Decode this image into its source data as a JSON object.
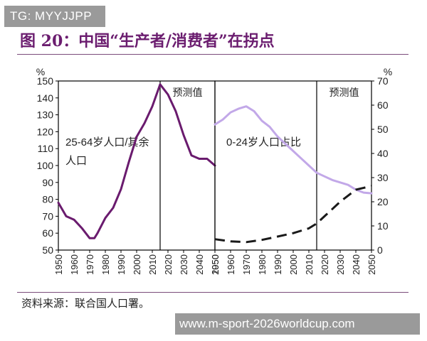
{
  "watermark_top": "TG: MYYJJPP",
  "figure_title": "图 20：中国“生产者/消费者”在拐点",
  "source": "资料来源：联合国人口署。",
  "watermark_bottom": "www.m-sport-2026worldcup.com",
  "colors": {
    "title": "#6b1d6f",
    "series_left": "#6a1b6e",
    "series_right_light": "#c2a8e8",
    "series_right_dark": "#1a1a1a"
  },
  "chart_data": [
    {
      "type": "line",
      "yunit": "%",
      "ylim": [
        50,
        150
      ],
      "yticks": [
        50,
        60,
        70,
        80,
        90,
        100,
        110,
        120,
        130,
        140,
        150
      ],
      "xlim": [
        1950,
        2050
      ],
      "xticks": [
        1950,
        1960,
        1970,
        1980,
        1990,
        2000,
        2010,
        2020,
        2030,
        2040,
        2050
      ],
      "series_label": "25-64岁人口/其余人口",
      "forecast_label": "预测值",
      "forecast_start": 2015,
      "grid": false,
      "series": [
        {
          "x": [
            1950,
            1955,
            1960,
            1965,
            1970,
            1973,
            1975,
            1980,
            1985,
            1990,
            1995,
            2000,
            2005,
            2010,
            2015,
            2020,
            2025,
            2030,
            2035,
            2040,
            2045,
            2050
          ],
          "y": [
            78,
            70,
            68,
            63,
            57,
            57,
            60,
            69,
            75,
            86,
            102,
            117,
            125,
            135,
            148,
            142,
            132,
            118,
            106,
            104,
            104,
            100
          ]
        }
      ]
    },
    {
      "type": "line",
      "yunit": "%",
      "ylim": [
        0,
        70
      ],
      "yticks": [
        0,
        10,
        20,
        30,
        40,
        50,
        60,
        70
      ],
      "xlim": [
        1950,
        2050
      ],
      "xticks": [
        1950,
        1960,
        1970,
        1980,
        1990,
        2000,
        2010,
        2020,
        2030,
        2040,
        2050
      ],
      "series_label": "0-24岁人口占比",
      "forecast_label": "预测值",
      "forecast_start": 2015,
      "grid": false,
      "series": [
        {
          "style": "solid",
          "x": [
            1950,
            1955,
            1960,
            1965,
            1970,
            1975,
            1980,
            1985,
            1990,
            1995,
            2000,
            2005,
            2010,
            2015,
            2020,
            2025,
            2030,
            2035,
            2040,
            2045,
            2050
          ],
          "y": [
            52,
            54,
            57,
            58.5,
            59.5,
            57.5,
            53.5,
            51,
            47,
            44,
            41,
            38,
            35,
            32,
            30.5,
            29,
            28,
            27,
            25,
            23.8,
            23.5
          ]
        },
        {
          "style": "dashed",
          "x": [
            1950,
            1960,
            1970,
            1980,
            1990,
            2000,
            2010,
            2015,
            2020,
            2030,
            2040,
            2050
          ],
          "y": [
            4.5,
            3.6,
            3.3,
            4.2,
            5.6,
            7,
            9,
            11,
            14,
            20,
            25,
            26.5
          ]
        }
      ]
    }
  ]
}
